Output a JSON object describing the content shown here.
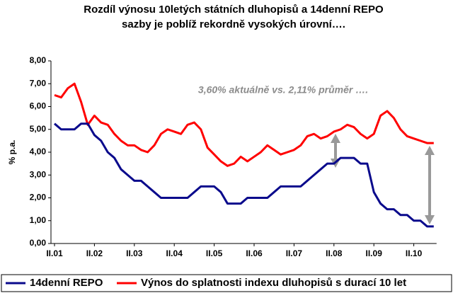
{
  "chart_data": {
    "type": "line",
    "title": [
      "Rozdíl výnosu 10letých státních dluhopisů a 14denní REPO",
      "sazby je poblíž rekordně vysokých úrovní…."
    ],
    "annotation": "3,60% aktuálně vs. 2,11% průměr ….",
    "y_label": "% p.a.",
    "categories": [
      "II.01",
      null,
      null,
      null,
      null,
      null,
      "II.02",
      null,
      null,
      null,
      null,
      null,
      "II.03",
      null,
      null,
      null,
      null,
      null,
      "II.04",
      null,
      null,
      null,
      null,
      null,
      "II.05",
      null,
      null,
      null,
      null,
      null,
      "II.06",
      null,
      null,
      null,
      null,
      null,
      "II.07",
      null,
      null,
      null,
      null,
      null,
      "II.08",
      null,
      null,
      null,
      null,
      null,
      "II.09",
      null,
      null,
      null,
      null,
      null,
      "II.10",
      null,
      null,
      null
    ],
    "series": [
      {
        "name": "14denní REPO",
        "color": "#0a0a8c",
        "values": [
          5.25,
          5.0,
          5.0,
          5.0,
          5.25,
          5.25,
          4.75,
          4.5,
          4.0,
          3.75,
          3.25,
          3.0,
          2.75,
          2.75,
          2.5,
          2.25,
          2.0,
          2.0,
          2.0,
          2.0,
          2.0,
          2.25,
          2.5,
          2.5,
          2.5,
          2.25,
          1.75,
          1.75,
          1.75,
          2.0,
          2.0,
          2.0,
          2.0,
          2.25,
          2.5,
          2.5,
          2.5,
          2.5,
          2.75,
          3.0,
          3.25,
          3.5,
          3.5,
          3.75,
          3.75,
          3.75,
          3.5,
          3.5,
          2.25,
          1.75,
          1.5,
          1.5,
          1.25,
          1.25,
          1.0,
          1.0,
          0.75,
          0.75
        ]
      },
      {
        "name": "Výnos do splatnosti  indexu dluhopisů s durací 10 let",
        "color": "#ff0000",
        "values": [
          6.5,
          6.4,
          6.8,
          7.0,
          6.2,
          5.2,
          5.6,
          5.3,
          5.2,
          4.8,
          4.5,
          4.3,
          4.3,
          4.1,
          4.0,
          4.3,
          4.8,
          5.0,
          4.9,
          4.8,
          5.2,
          5.3,
          5.0,
          4.2,
          3.9,
          3.6,
          3.4,
          3.5,
          3.8,
          3.6,
          3.8,
          4.0,
          4.3,
          4.1,
          3.9,
          4.0,
          4.1,
          4.3,
          4.7,
          4.8,
          4.6,
          4.7,
          4.9,
          5.0,
          5.2,
          5.1,
          4.8,
          4.6,
          4.8,
          5.6,
          5.8,
          5.5,
          5.0,
          4.7,
          4.6,
          4.5,
          4.4,
          4.4
        ]
      }
    ],
    "ylim": [
      0,
      8
    ],
    "yticks": [
      {
        "value": 0,
        "label": "0,00"
      },
      {
        "value": 1,
        "label": "1,00"
      },
      {
        "value": 2,
        "label": "2,00"
      },
      {
        "value": 3,
        "label": "3,00"
      },
      {
        "value": 4,
        "label": "4,00"
      },
      {
        "value": 5,
        "label": "5,00"
      },
      {
        "value": 6,
        "label": "6,00"
      },
      {
        "value": 7,
        "label": "7,00"
      },
      {
        "value": 8,
        "label": "8,00"
      }
    ]
  }
}
